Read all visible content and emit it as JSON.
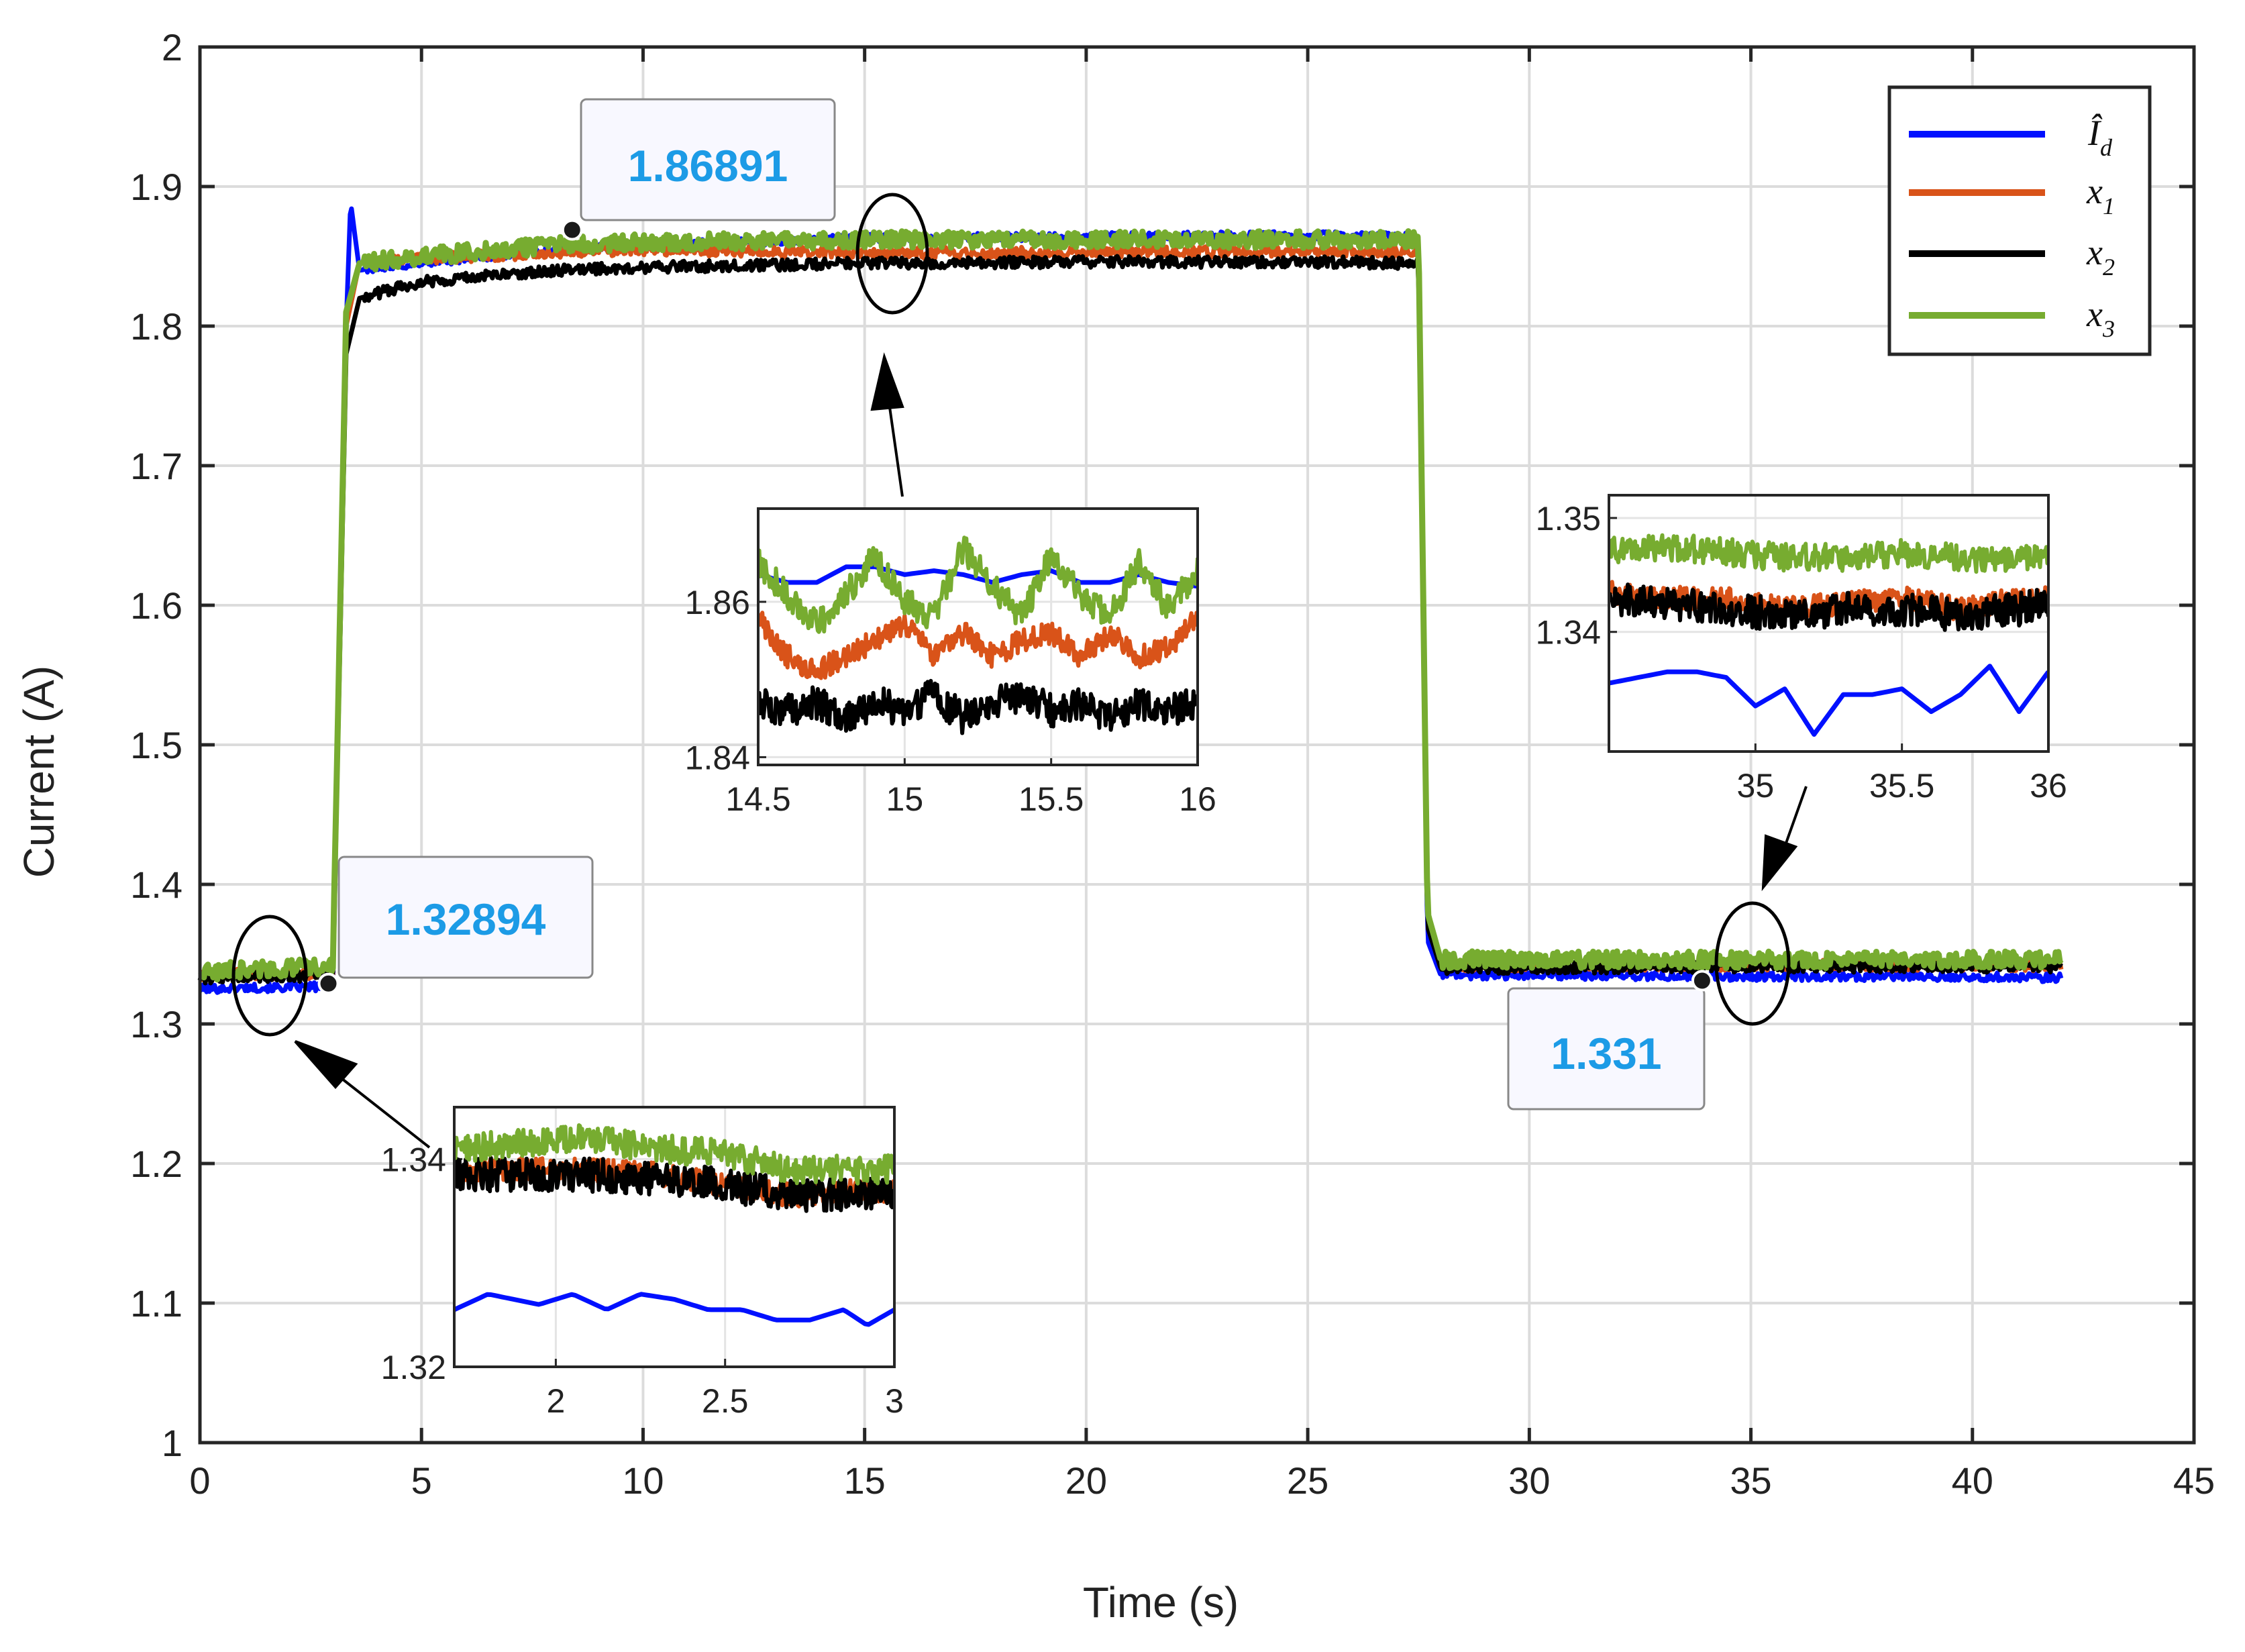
{
  "chart_data": {
    "type": "line",
    "title": "",
    "xlabel": "Time (s)",
    "ylabel": "Current (A)",
    "xlim": [
      0,
      45
    ],
    "ylim": [
      1,
      2
    ],
    "xticks": [
      0,
      5,
      10,
      15,
      20,
      25,
      30,
      35,
      40,
      45
    ],
    "yticks": [
      1,
      1.1,
      1.2,
      1.3,
      1.4,
      1.5,
      1.6,
      1.7,
      1.8,
      1.9,
      2
    ],
    "grid": true,
    "legend_position": "top-right",
    "series": [
      {
        "name": "Î_d",
        "sub": "d",
        "color": "#0010ff",
        "x": [
          0,
          1,
          2,
          3,
          3.3,
          3.4,
          3.6,
          5,
          8,
          10,
          15,
          20,
          25,
          27.5,
          27.7,
          28,
          30,
          35,
          40,
          42
        ],
        "y": [
          1.325,
          1.326,
          1.326,
          1.327,
          1.8,
          1.889,
          1.84,
          1.845,
          1.855,
          1.858,
          1.863,
          1.864,
          1.865,
          1.864,
          1.36,
          1.335,
          1.335,
          1.334,
          1.334,
          1.333
        ]
      },
      {
        "name": "x_1",
        "sub": "1",
        "color": "#d95319",
        "x": [
          0,
          1,
          2,
          3,
          3.3,
          3.6,
          5,
          8,
          10,
          15,
          20,
          25,
          27.5,
          27.7,
          28,
          30,
          35,
          40,
          42
        ],
        "y": [
          1.335,
          1.336,
          1.336,
          1.337,
          1.8,
          1.845,
          1.848,
          1.853,
          1.855,
          1.852,
          1.853,
          1.854,
          1.853,
          1.37,
          1.342,
          1.342,
          1.342,
          1.342,
          1.342
        ]
      },
      {
        "name": "x_2",
        "sub": "2",
        "color": "#000000",
        "x": [
          0,
          1,
          2,
          3,
          3.3,
          3.6,
          5,
          8,
          10,
          15,
          20,
          25,
          27.5,
          27.7,
          28,
          30,
          35,
          40,
          42
        ],
        "y": [
          1.333,
          1.334,
          1.334,
          1.335,
          1.78,
          1.82,
          1.832,
          1.84,
          1.842,
          1.845,
          1.846,
          1.846,
          1.845,
          1.37,
          1.34,
          1.34,
          1.341,
          1.341,
          1.341
        ]
      },
      {
        "name": "x_3",
        "sub": "3",
        "color": "#77ac30",
        "x": [
          0,
          1,
          2,
          3,
          3.3,
          3.6,
          5,
          8,
          10,
          15,
          20,
          25,
          27.5,
          27.7,
          28,
          30,
          35,
          40,
          42
        ],
        "y": [
          1.337,
          1.339,
          1.34,
          1.341,
          1.81,
          1.845,
          1.85,
          1.858,
          1.86,
          1.862,
          1.862,
          1.862,
          1.862,
          1.38,
          1.346,
          1.346,
          1.346,
          1.346,
          1.346
        ]
      }
    ],
    "callouts": [
      {
        "label": "1.32894",
        "x": 2.9,
        "y": 1.32894
      },
      {
        "label": "1.86891",
        "x": 8.4,
        "y": 1.86891
      },
      {
        "label": "1.331",
        "x": 33.9,
        "y": 1.331
      }
    ],
    "insets": [
      {
        "name": "inset-left",
        "xlim": [
          1.7,
          3
        ],
        "ylim": [
          1.32,
          1.345
        ],
        "xticks": [
          2,
          2.5,
          3
        ],
        "xtick_labels": [
          "2",
          "2.5",
          "3"
        ],
        "yticks": [
          1.32,
          1.34
        ],
        "ytick_labels": [
          "1.32",
          "1.34"
        ],
        "series": [
          {
            "color": "#0010ff",
            "x": [
              1.7,
              1.8,
              1.95,
              2.05,
              2.15,
              2.25,
              2.35,
              2.45,
              2.55,
              2.65,
              2.75,
              2.85,
              2.92,
              3.0
            ],
            "y": [
              1.3255,
              1.327,
              1.326,
              1.327,
              1.3255,
              1.327,
              1.3265,
              1.3255,
              1.3255,
              1.3245,
              1.3245,
              1.3255,
              1.324,
              1.3255
            ]
          },
          {
            "color": "#d95319",
            "x": [
              1.7,
              1.9,
              2.1,
              2.3,
              2.5,
              2.7,
              2.9,
              3.0
            ],
            "y": [
              1.339,
              1.339,
              1.339,
              1.3385,
              1.3375,
              1.3365,
              1.337,
              1.337
            ]
          },
          {
            "color": "#000000",
            "x": [
              1.7,
              1.9,
              2.1,
              2.3,
              2.5,
              2.7,
              2.9,
              3.0
            ],
            "y": [
              1.3385,
              1.3385,
              1.3385,
              1.338,
              1.3375,
              1.3365,
              1.3365,
              1.3365
            ]
          },
          {
            "color": "#77ac30",
            "x": [
              1.7,
              1.9,
              2.1,
              2.3,
              2.5,
              2.7,
              2.9,
              3.0
            ],
            "y": [
              1.341,
              1.3415,
              1.342,
              1.341,
              1.3405,
              1.339,
              1.339,
              1.339
            ]
          }
        ]
      },
      {
        "name": "inset-middle",
        "xlim": [
          14.5,
          16
        ],
        "ylim": [
          1.839,
          1.872
        ],
        "xticks": [
          14.5,
          15,
          15.5,
          16
        ],
        "xtick_labels": [
          "14.5",
          "15",
          "15.5",
          "16"
        ],
        "yticks": [
          1.84,
          1.86
        ],
        "ytick_labels": [
          "1.84",
          "1.86"
        ],
        "series": [
          {
            "color": "#0010ff",
            "x": [
              14.5,
              14.6,
              14.7,
              14.8,
              14.9,
              15.0,
              15.1,
              15.2,
              15.3,
              15.4,
              15.5,
              15.6,
              15.7,
              15.8,
              15.9,
              16.0
            ],
            "y": [
              1.8635,
              1.8625,
              1.8625,
              1.8645,
              1.8645,
              1.8635,
              1.864,
              1.8635,
              1.8625,
              1.8635,
              1.864,
              1.8625,
              1.8625,
              1.8635,
              1.8625,
              1.862
            ]
          },
          {
            "color": "#d95319",
            "x": [
              14.5,
              14.6,
              14.7,
              14.8,
              14.9,
              15.0,
              15.1,
              15.2,
              15.3,
              15.4,
              15.5,
              15.6,
              15.7,
              15.8,
              15.9,
              16.0
            ],
            "y": [
              1.858,
              1.853,
              1.851,
              1.853,
              1.855,
              1.857,
              1.853,
              1.856,
              1.853,
              1.855,
              1.856,
              1.853,
              1.856,
              1.853,
              1.854,
              1.858
            ]
          },
          {
            "color": "#000000",
            "x": [
              14.5,
              14.6,
              14.7,
              14.8,
              14.9,
              15.0,
              15.1,
              15.2,
              15.3,
              15.4,
              15.5,
              15.6,
              15.7,
              15.8,
              15.9,
              16.0
            ],
            "y": [
              1.847,
              1.846,
              1.847,
              1.845,
              1.847,
              1.846,
              1.848,
              1.845,
              1.847,
              1.848,
              1.846,
              1.847,
              1.845,
              1.847,
              1.846,
              1.847
            ]
          },
          {
            "color": "#77ac30",
            "x": [
              14.5,
              14.6,
              14.7,
              14.8,
              14.9,
              15.0,
              15.1,
              15.2,
              15.3,
              15.4,
              15.5,
              15.6,
              15.7,
              15.8,
              15.9,
              16.0
            ],
            "y": [
              1.865,
              1.861,
              1.857,
              1.861,
              1.866,
              1.86,
              1.858,
              1.867,
              1.862,
              1.858,
              1.866,
              1.861,
              1.858,
              1.865,
              1.859,
              1.864
            ]
          }
        ]
      },
      {
        "name": "inset-right",
        "xlim": [
          34.5,
          36
        ],
        "ylim": [
          1.3295,
          1.352
        ],
        "xticks": [
          35,
          35.5,
          36
        ],
        "xtick_labels": [
          "35",
          "35.5",
          "36"
        ],
        "yticks": [
          1.34,
          1.35
        ],
        "ytick_labels": [
          "1.34",
          "1.35"
        ],
        "series": [
          {
            "color": "#0010ff",
            "x": [
              34.5,
              34.6,
              34.7,
              34.8,
              34.9,
              35.0,
              35.1,
              35.2,
              35.3,
              35.4,
              35.5,
              35.6,
              35.7,
              35.8,
              35.9,
              36.0
            ],
            "y": [
              1.3355,
              1.336,
              1.3365,
              1.3365,
              1.336,
              1.3335,
              1.335,
              1.331,
              1.3345,
              1.3345,
              1.335,
              1.333,
              1.3345,
              1.337,
              1.333,
              1.3365
            ]
          },
          {
            "color": "#d95319",
            "x": [
              34.5,
              34.7,
              34.9,
              35.1,
              35.3,
              35.5,
              35.7,
              35.9,
              36.0
            ],
            "y": [
              1.3435,
              1.343,
              1.343,
              1.342,
              1.3425,
              1.343,
              1.342,
              1.343,
              1.343
            ]
          },
          {
            "color": "#000000",
            "x": [
              34.5,
              34.7,
              34.9,
              35.1,
              35.3,
              35.5,
              35.7,
              35.9,
              36.0
            ],
            "y": [
              1.343,
              1.3425,
              1.342,
              1.3415,
              1.342,
              1.342,
              1.3415,
              1.342,
              1.3425
            ]
          },
          {
            "color": "#77ac30",
            "x": [
              34.5,
              34.7,
              34.9,
              35.1,
              35.3,
              35.5,
              35.7,
              35.9,
              36.0
            ],
            "y": [
              1.347,
              1.3475,
              1.347,
              1.3465,
              1.3465,
              1.347,
              1.3465,
              1.3465,
              1.347
            ]
          }
        ]
      }
    ]
  }
}
